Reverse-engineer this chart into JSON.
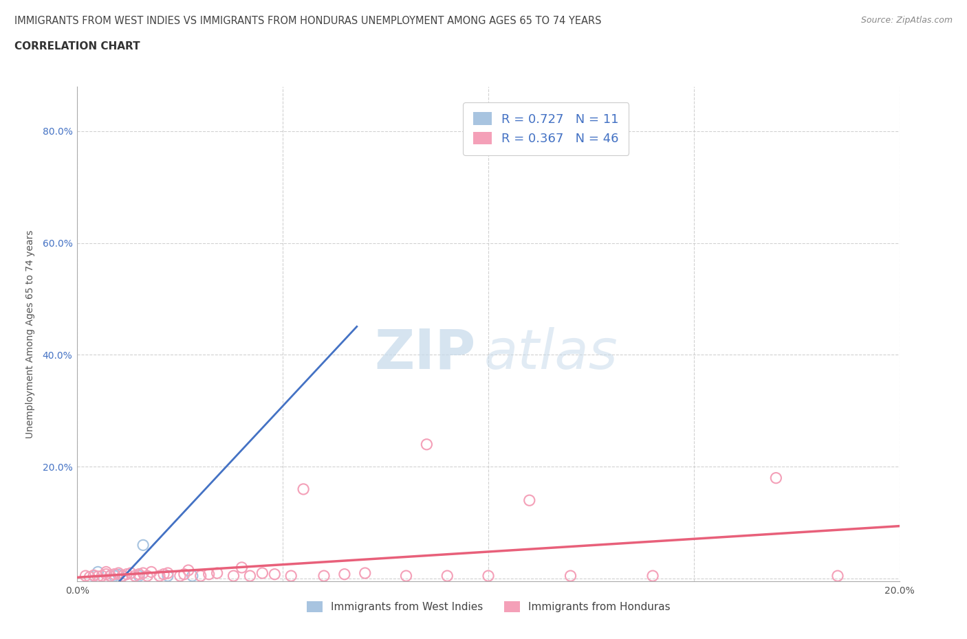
{
  "title_line1": "IMMIGRANTS FROM WEST INDIES VS IMMIGRANTS FROM HONDURAS UNEMPLOYMENT AMONG AGES 65 TO 74 YEARS",
  "title_line2": "CORRELATION CHART",
  "source": "Source: ZipAtlas.com",
  "ylabel": "Unemployment Among Ages 65 to 74 years",
  "xlim": [
    0.0,
    0.2
  ],
  "ylim": [
    -0.005,
    0.88
  ],
  "west_indies_R": 0.727,
  "west_indies_N": 11,
  "honduras_R": 0.367,
  "honduras_N": 46,
  "west_indies_color": "#a8c4e0",
  "honduras_color": "#f4a0b8",
  "west_indies_line_color": "#4472c4",
  "honduras_line_color": "#e8607a",
  "west_indies_x": [
    0.004,
    0.005,
    0.008,
    0.009,
    0.01,
    0.011,
    0.015,
    0.016,
    0.022,
    0.028,
    0.105
  ],
  "west_indies_y": [
    0.005,
    0.012,
    0.005,
    0.005,
    0.007,
    0.005,
    0.005,
    0.06,
    0.005,
    0.005,
    0.785
  ],
  "honduras_x": [
    0.002,
    0.003,
    0.004,
    0.005,
    0.006,
    0.007,
    0.007,
    0.008,
    0.009,
    0.01,
    0.011,
    0.012,
    0.013,
    0.014,
    0.015,
    0.016,
    0.017,
    0.018,
    0.02,
    0.021,
    0.022,
    0.025,
    0.026,
    0.027,
    0.03,
    0.032,
    0.034,
    0.038,
    0.04,
    0.042,
    0.045,
    0.048,
    0.052,
    0.055,
    0.06,
    0.065,
    0.07,
    0.08,
    0.085,
    0.09,
    0.1,
    0.11,
    0.12,
    0.14,
    0.17,
    0.185
  ],
  "honduras_y": [
    0.005,
    0.003,
    0.006,
    0.004,
    0.005,
    0.008,
    0.012,
    0.005,
    0.008,
    0.01,
    0.005,
    0.008,
    0.01,
    0.005,
    0.008,
    0.01,
    0.005,
    0.012,
    0.005,
    0.008,
    0.01,
    0.005,
    0.008,
    0.015,
    0.005,
    0.008,
    0.01,
    0.005,
    0.02,
    0.005,
    0.01,
    0.008,
    0.005,
    0.16,
    0.005,
    0.008,
    0.01,
    0.005,
    0.24,
    0.005,
    0.005,
    0.14,
    0.005,
    0.005,
    0.18,
    0.005
  ],
  "watermark_zip_color": "#c5d9ea",
  "watermark_atlas_color": "#c5d9ea"
}
